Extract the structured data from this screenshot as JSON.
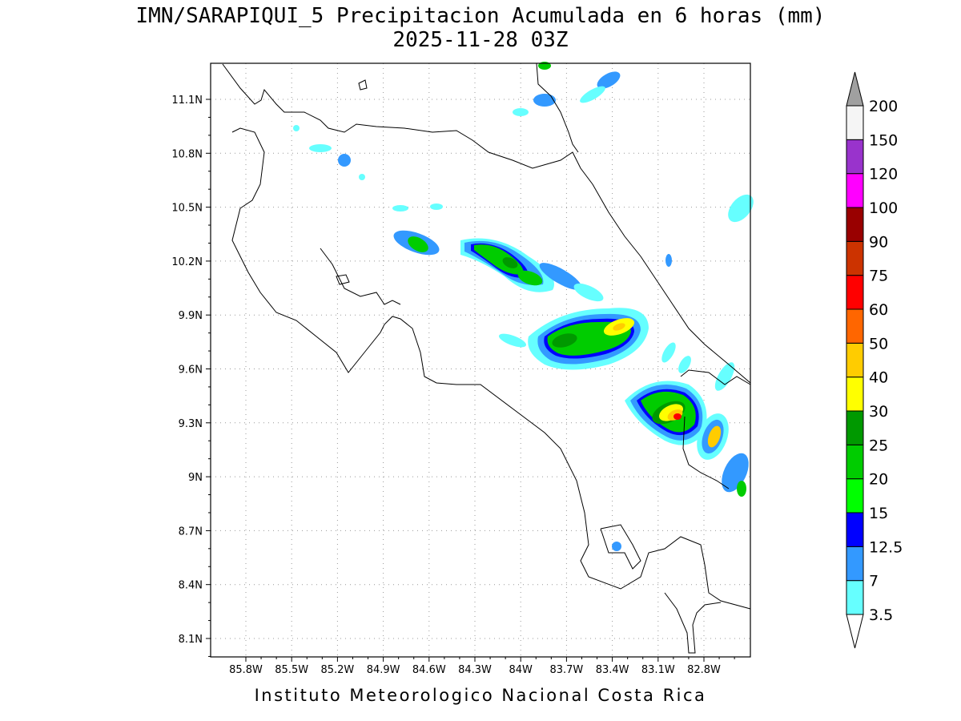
{
  "header": {
    "title": "IMN/SARAPIQUI_5 Precipitacion Acumulada en 6 horas (mm)",
    "subtitle": "2025-11-28 03Z"
  },
  "footer": {
    "credit": "Instituto Meteorologico Nacional Costa Rica"
  },
  "map": {
    "lat_ticks": [
      "11.1N",
      "10.8N",
      "10.5N",
      "10.2N",
      "9.9N",
      "9.6N",
      "9.3N",
      "9N",
      "8.7N",
      "8.4N",
      "8.1N"
    ],
    "lon_ticks": [
      "85.8W",
      "85.5W",
      "85.2W",
      "84.9W",
      "84.6W",
      "84.3W",
      "84W",
      "83.7W",
      "83.4W",
      "83.1W",
      "82.8W"
    ],
    "grid": true,
    "lon_range": [
      -86.05,
      -83.1
    ],
    "lat_range": [
      8.0,
      11.3
    ]
  },
  "colorbar": {
    "levels": [
      "3.5",
      "7",
      "12.5",
      "15",
      "20",
      "25",
      "30",
      "40",
      "50",
      "60",
      "75",
      "90",
      "100",
      "120",
      "150",
      "200"
    ],
    "colors": [
      "#66ffff",
      "#3399ff",
      "#0000ff",
      "#00ff00",
      "#00cc00",
      "#009900",
      "#ffff00",
      "#ffcc00",
      "#ff6600",
      "#ff0000",
      "#cc3300",
      "#990000",
      "#ff00ff",
      "#9933cc",
      "#f5f5f5",
      "#a0a0a0"
    ]
  }
}
